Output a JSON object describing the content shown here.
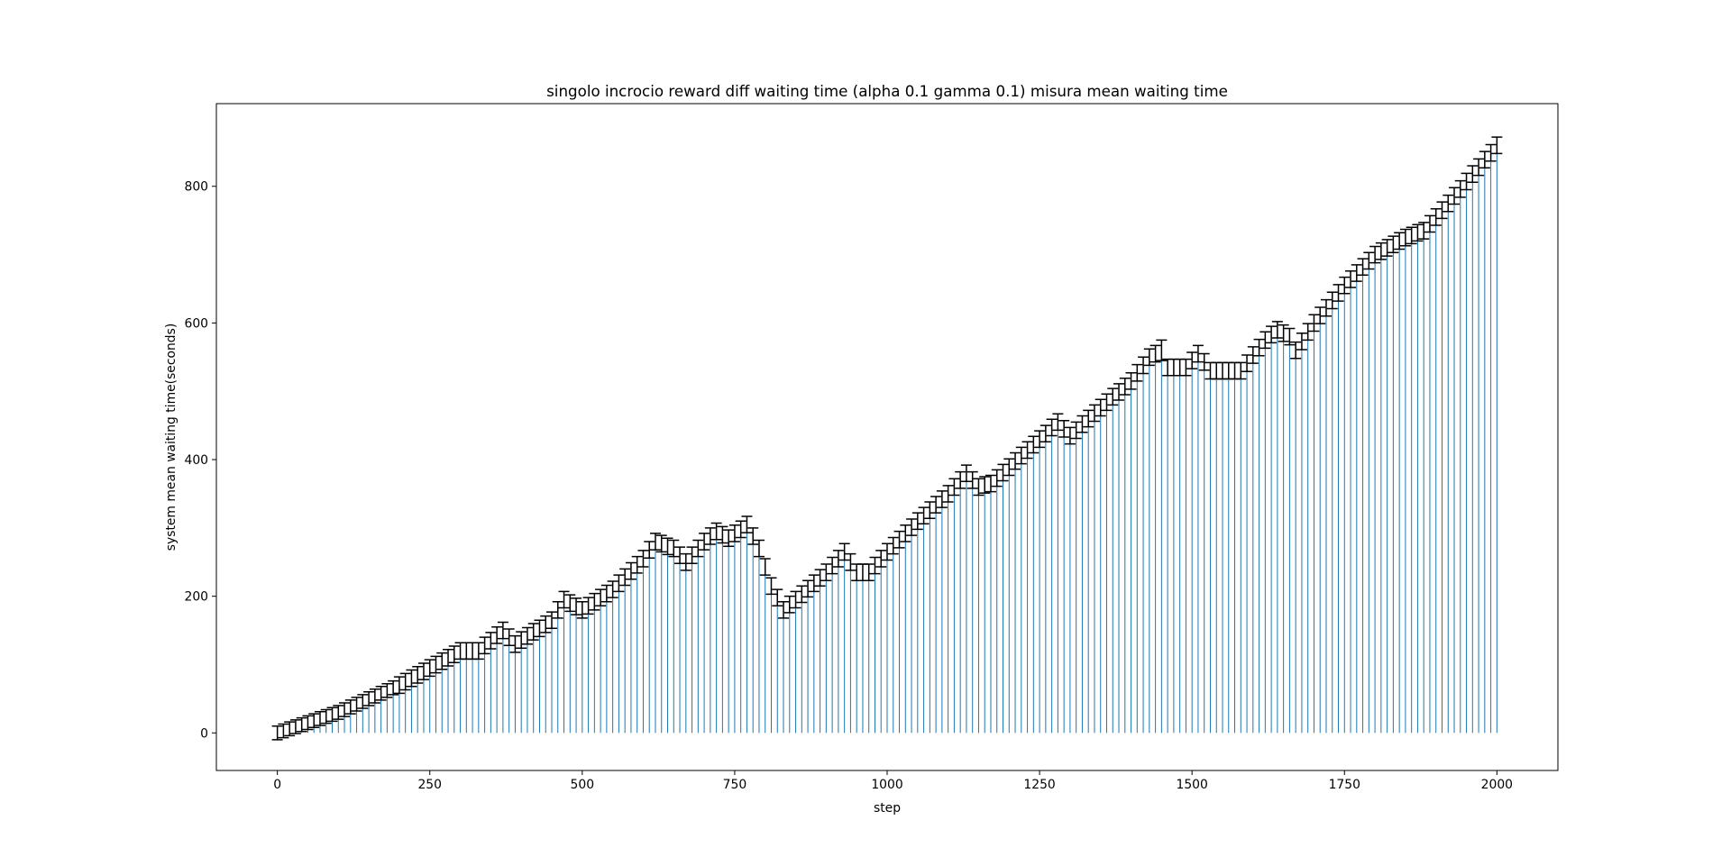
{
  "chart_data": {
    "type": "bar",
    "title": "singolo incrocio reward diff waiting time (alpha 0.1 gamma 0.1) misura mean waiting time",
    "xlabel": "step",
    "ylabel": "system mean waiting time(seconds)",
    "color": "#1f77b4",
    "error_color": "#000000",
    "xlim": [
      -100,
      2100
    ],
    "xticks": [
      0,
      250,
      500,
      750,
      1000,
      1250,
      1500,
      1750,
      2000
    ],
    "ylim": [
      -55,
      921
    ],
    "yticks": [
      0,
      200,
      400,
      600,
      800
    ],
    "x": [
      0,
      10,
      20,
      30,
      40,
      50,
      60,
      70,
      80,
      90,
      100,
      110,
      120,
      130,
      140,
      150,
      160,
      170,
      180,
      190,
      200,
      210,
      220,
      230,
      240,
      250,
      260,
      270,
      280,
      290,
      300,
      310,
      320,
      330,
      340,
      350,
      360,
      370,
      380,
      390,
      400,
      410,
      420,
      430,
      440,
      450,
      460,
      470,
      480,
      490,
      500,
      510,
      520,
      530,
      540,
      550,
      560,
      570,
      580,
      590,
      600,
      610,
      620,
      630,
      640,
      650,
      660,
      670,
      680,
      690,
      700,
      710,
      720,
      730,
      740,
      750,
      760,
      770,
      780,
      790,
      800,
      810,
      820,
      830,
      840,
      850,
      860,
      870,
      880,
      890,
      900,
      910,
      920,
      930,
      940,
      950,
      960,
      970,
      980,
      990,
      1000,
      1010,
      1020,
      1030,
      1040,
      1050,
      1060,
      1070,
      1080,
      1090,
      1100,
      1110,
      1120,
      1130,
      1140,
      1150,
      1160,
      1170,
      1180,
      1190,
      1200,
      1210,
      1220,
      1230,
      1240,
      1250,
      1260,
      1270,
      1280,
      1290,
      1300,
      1310,
      1320,
      1330,
      1340,
      1350,
      1360,
      1370,
      1380,
      1390,
      1400,
      1410,
      1420,
      1430,
      1440,
      1450,
      1460,
      1470,
      1480,
      1490,
      1500,
      1510,
      1520,
      1530,
      1540,
      1550,
      1560,
      1570,
      1580,
      1590,
      1600,
      1610,
      1620,
      1630,
      1640,
      1650,
      1660,
      1670,
      1680,
      1690,
      1700,
      1710,
      1720,
      1730,
      1740,
      1750,
      1760,
      1770,
      1780,
      1790,
      1800,
      1810,
      1820,
      1830,
      1840,
      1850,
      1860,
      1870,
      1880,
      1890,
      1900,
      1910,
      1920,
      1930,
      1940,
      1950,
      1960,
      1970,
      1980,
      1990,
      2000
    ],
    "values": [
      0,
      3,
      6,
      9,
      12,
      15,
      18,
      21,
      24,
      27,
      30,
      34,
      38,
      42,
      46,
      50,
      54,
      58,
      62,
      66,
      70,
      75,
      80,
      85,
      90,
      95,
      100,
      105,
      110,
      115,
      120,
      120,
      120,
      120,
      128,
      135,
      143,
      150,
      140,
      130,
      136,
      142,
      148,
      153,
      159,
      165,
      180,
      195,
      190,
      185,
      180,
      186,
      192,
      198,
      204,
      210,
      219,
      228,
      237,
      246,
      255,
      268,
      280,
      277,
      273,
      270,
      260,
      250,
      260,
      270,
      280,
      288,
      295,
      290,
      285,
      292,
      298,
      305,
      288,
      270,
      243,
      215,
      198,
      180,
      188,
      195,
      203,
      211,
      219,
      227,
      235,
      245,
      255,
      265,
      250,
      235,
      235,
      235,
      245,
      255,
      265,
      274,
      283,
      292,
      301,
      310,
      318,
      326,
      334,
      342,
      350,
      360,
      370,
      380,
      370,
      360,
      363,
      365,
      373,
      381,
      389,
      398,
      406,
      414,
      422,
      430,
      438,
      447,
      455,
      445,
      435,
      443,
      452,
      460,
      468,
      476,
      484,
      492,
      499,
      507,
      515,
      527,
      538,
      550,
      555,
      560,
      535,
      535,
      535,
      535,
      545,
      555,
      543,
      530,
      530,
      530,
      530,
      530,
      530,
      541,
      553,
      564,
      575,
      583,
      590,
      585,
      580,
      560,
      573,
      587,
      600,
      611,
      622,
      633,
      644,
      655,
      664,
      673,
      682,
      691,
      700,
      705,
      710,
      715,
      720,
      725,
      728,
      732,
      735,
      745,
      755,
      765,
      775,
      786,
      796,
      807,
      818,
      828,
      839,
      849,
      860
    ],
    "errors": [
      10,
      10,
      10,
      10,
      10,
      10,
      10,
      10,
      10,
      10,
      10,
      10,
      10,
      10,
      10,
      10,
      10,
      10,
      10,
      10,
      12,
      12,
      12,
      12,
      12,
      12,
      12,
      12,
      12,
      12,
      12,
      12,
      12,
      12,
      12,
      12,
      12,
      12,
      12,
      12,
      12,
      12,
      12,
      12,
      12,
      12,
      12,
      12,
      12,
      12,
      12,
      12,
      12,
      12,
      12,
      12,
      12,
      12,
      12,
      12,
      12,
      12,
      12,
      12,
      12,
      12,
      12,
      12,
      12,
      12,
      12,
      12,
      12,
      12,
      12,
      12,
      12,
      12,
      12,
      12,
      12,
      12,
      12,
      12,
      12,
      12,
      12,
      12,
      12,
      12,
      12,
      12,
      12,
      12,
      12,
      12,
      12,
      12,
      12,
      12,
      12,
      12,
      12,
      12,
      12,
      12,
      12,
      12,
      12,
      12,
      12,
      12,
      12,
      12,
      12,
      12,
      12,
      12,
      12,
      12,
      12,
      12,
      12,
      12,
      12,
      12,
      12,
      12,
      12,
      12,
      12,
      12,
      12,
      12,
      12,
      12,
      12,
      12,
      12,
      12,
      12,
      12,
      12,
      12,
      12,
      15,
      12,
      12,
      12,
      12,
      12,
      12,
      12,
      12,
      12,
      12,
      12,
      12,
      12,
      12,
      12,
      12,
      12,
      12,
      12,
      12,
      12,
      12,
      12,
      12,
      12,
      12,
      12,
      12,
      12,
      12,
      12,
      12,
      12,
      12,
      12,
      12,
      12,
      12,
      12,
      12,
      12,
      12,
      12,
      12,
      12,
      12,
      12,
      12,
      12,
      12,
      12,
      12,
      12,
      12,
      12
    ]
  }
}
